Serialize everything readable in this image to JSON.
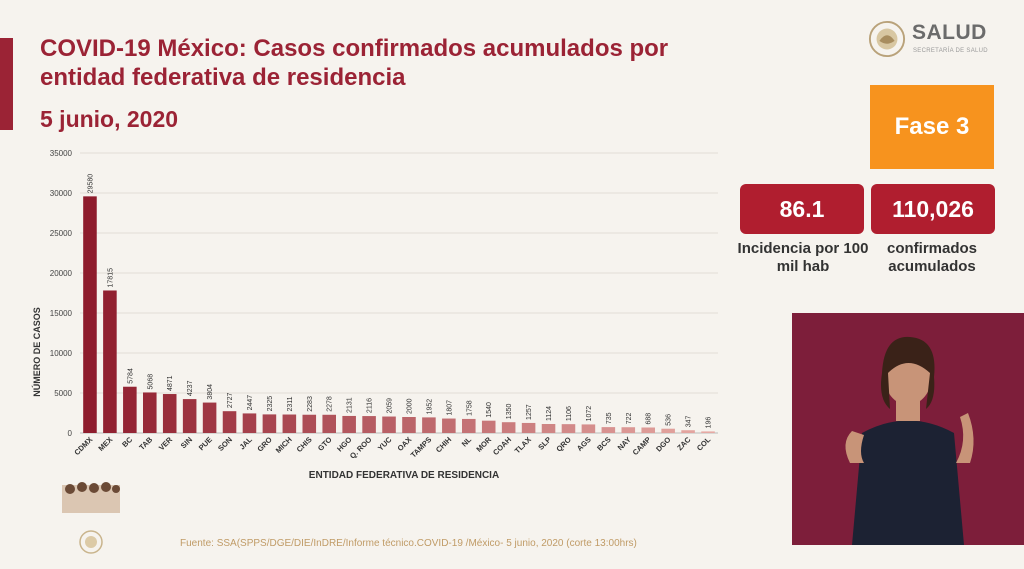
{
  "header": {
    "title": "COVID-19 México: Casos confirmados acumulados por entidad federativa de residencia",
    "date": "5 junio, 2020"
  },
  "logo": {
    "name": "SALUD",
    "subtitle": "SECRETARÍA DE SALUD"
  },
  "fase": "Fase 3",
  "stats": {
    "incidence_value": "86.1",
    "incidence_label": "Incidencia por 100 mil hab",
    "confirmed_value": "110,026",
    "confirmed_label": "confirmados acumulados"
  },
  "source": "Fuente: SSA(SPPS/DGE/DIE/InDRE/Informe técnico.COVID-19 /México- 5 junio, 2020 (corte 13:00hrs)",
  "colors": {
    "accent": "#9b2335",
    "bar_dark": "#8e1c2c",
    "bar_light": "#e6a9a3",
    "fase": "#f7931e",
    "stat_box": "#b01e2f"
  },
  "chart_data": {
    "type": "bar",
    "xlabel": "ENTIDAD FEDERATIVA DE RESIDENCIA",
    "ylabel": "NÚMERO DE CASOS",
    "ylim": [
      0,
      35000
    ],
    "yticks": [
      0,
      5000,
      10000,
      15000,
      20000,
      25000,
      30000,
      35000
    ],
    "grid": true,
    "categories": [
      "CDMX",
      "MEX",
      "BC",
      "TAB",
      "VER",
      "SIN",
      "PUE",
      "SON",
      "JAL",
      "GRO",
      "MICH",
      "CHIS",
      "GTO",
      "HGO",
      "Q. ROO",
      "YUC",
      "OAX",
      "TAMPS",
      "CHIH",
      "NL",
      "MOR",
      "COAH",
      "TLAX",
      "SLP",
      "QRO",
      "AGS",
      "BCS",
      "NAY",
      "CAMP",
      "DGO",
      "ZAC",
      "COL"
    ],
    "values": [
      29580,
      17815,
      5784,
      5068,
      4871,
      4237,
      3804,
      2727,
      2447,
      2325,
      2311,
      2283,
      2278,
      2131,
      2116,
      2059,
      2000,
      1952,
      1807,
      1758,
      1540,
      1350,
      1257,
      1124,
      1106,
      1072,
      735,
      722,
      688,
      536,
      347,
      196
    ]
  }
}
